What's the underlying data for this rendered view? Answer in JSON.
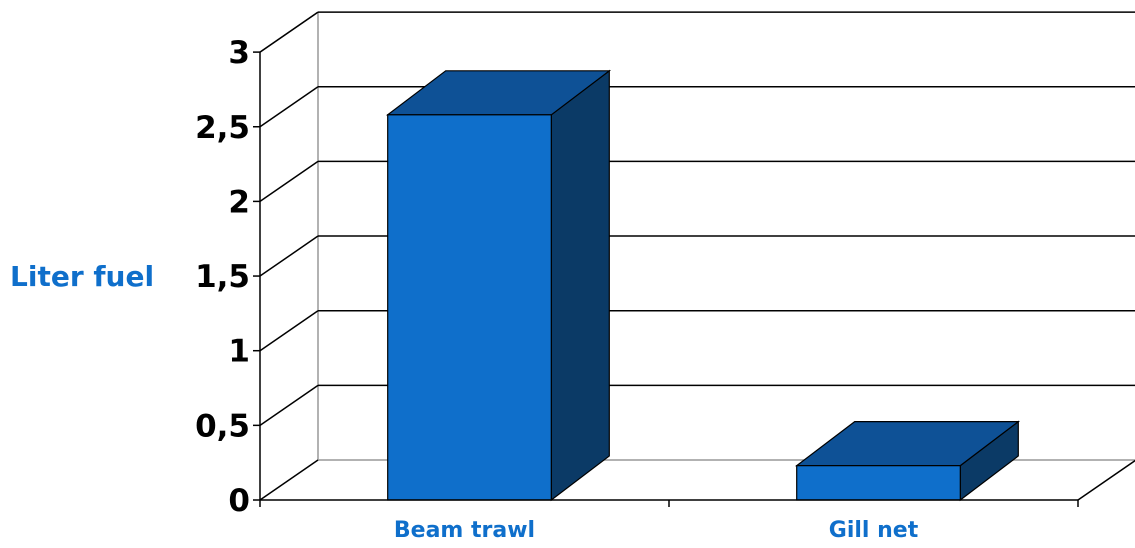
{
  "chart_data": {
    "type": "bar",
    "title": "",
    "xlabel": "",
    "ylabel": "Liter fuel",
    "categories": [
      "Beam trawl",
      "Gill net"
    ],
    "values": [
      2.58,
      0.23
    ],
    "ylim": [
      0,
      3
    ],
    "y_ticks": [
      0,
      0.5,
      1,
      1.5,
      2,
      2.5,
      3
    ],
    "y_tick_labels": [
      "0",
      "0,5",
      "1",
      "1,5",
      "2",
      "2,5",
      "3"
    ],
    "grid": true,
    "legend": "none",
    "three_d": true,
    "colors": {
      "bar_front": "#0f6fcb",
      "bar_top": "#0e5196",
      "bar_side": "#0b3a66",
      "category_label": "#0f6fcb",
      "ylabel": "#0f6fcb",
      "tick_label": "#000000",
      "grid": "#000000",
      "wall": "#999999"
    }
  }
}
